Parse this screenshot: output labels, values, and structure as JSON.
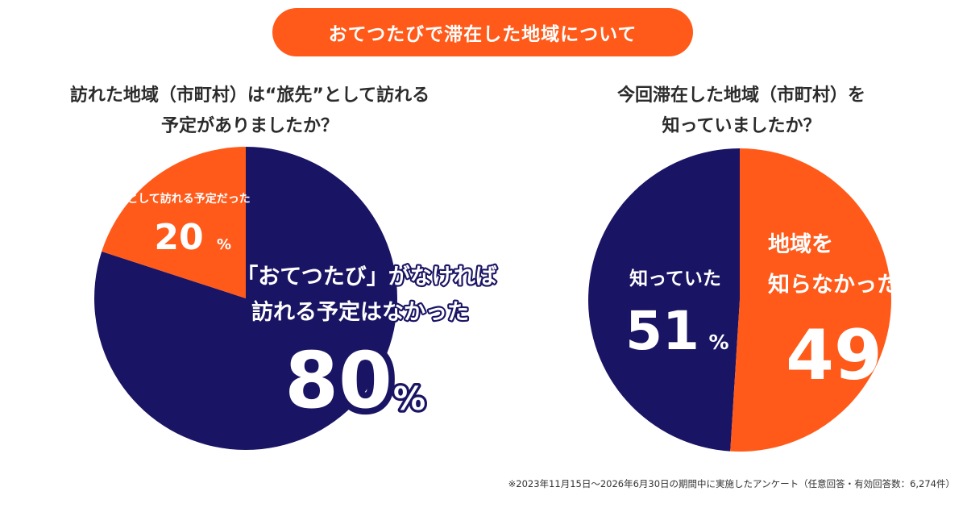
{
  "banner": {
    "title": "おてつたびで滞在した地域について"
  },
  "colors": {
    "navy": "#1a1464",
    "orange": "#ff5a1a",
    "white": "#ffffff"
  },
  "chart_data": [
    {
      "type": "pie",
      "title_lines": [
        "訪れた地域（市町村）は“旅先”として訪れる",
        "予定がありましたか？"
      ],
      "unit": "%",
      "slices": [
        {
          "label_lines": [
            "「おてつたび」がなければ",
            "訪れる予定はなかった"
          ],
          "value": 80,
          "color": "#1a1464"
        },
        {
          "label_lines": [
            "旅先として訪れる予定だった"
          ],
          "value": 20,
          "color": "#ff5a1a"
        }
      ]
    },
    {
      "type": "pie",
      "title_lines": [
        "今回滞在した地域（市町村）を",
        "知っていましたか？"
      ],
      "unit": "%",
      "slices": [
        {
          "label_lines": [
            "地域を",
            "知らなかった"
          ],
          "value": 49,
          "color": "#1a1464"
        },
        {
          "label_lines": [
            "知っていた"
          ],
          "value": 51,
          "color": "#ff5a1a"
        }
      ]
    }
  ],
  "footnote": "※2023年11月15日〜2026年6月30日の期間中に実施したアンケート（任意回答・有効回答数：6,274件）"
}
